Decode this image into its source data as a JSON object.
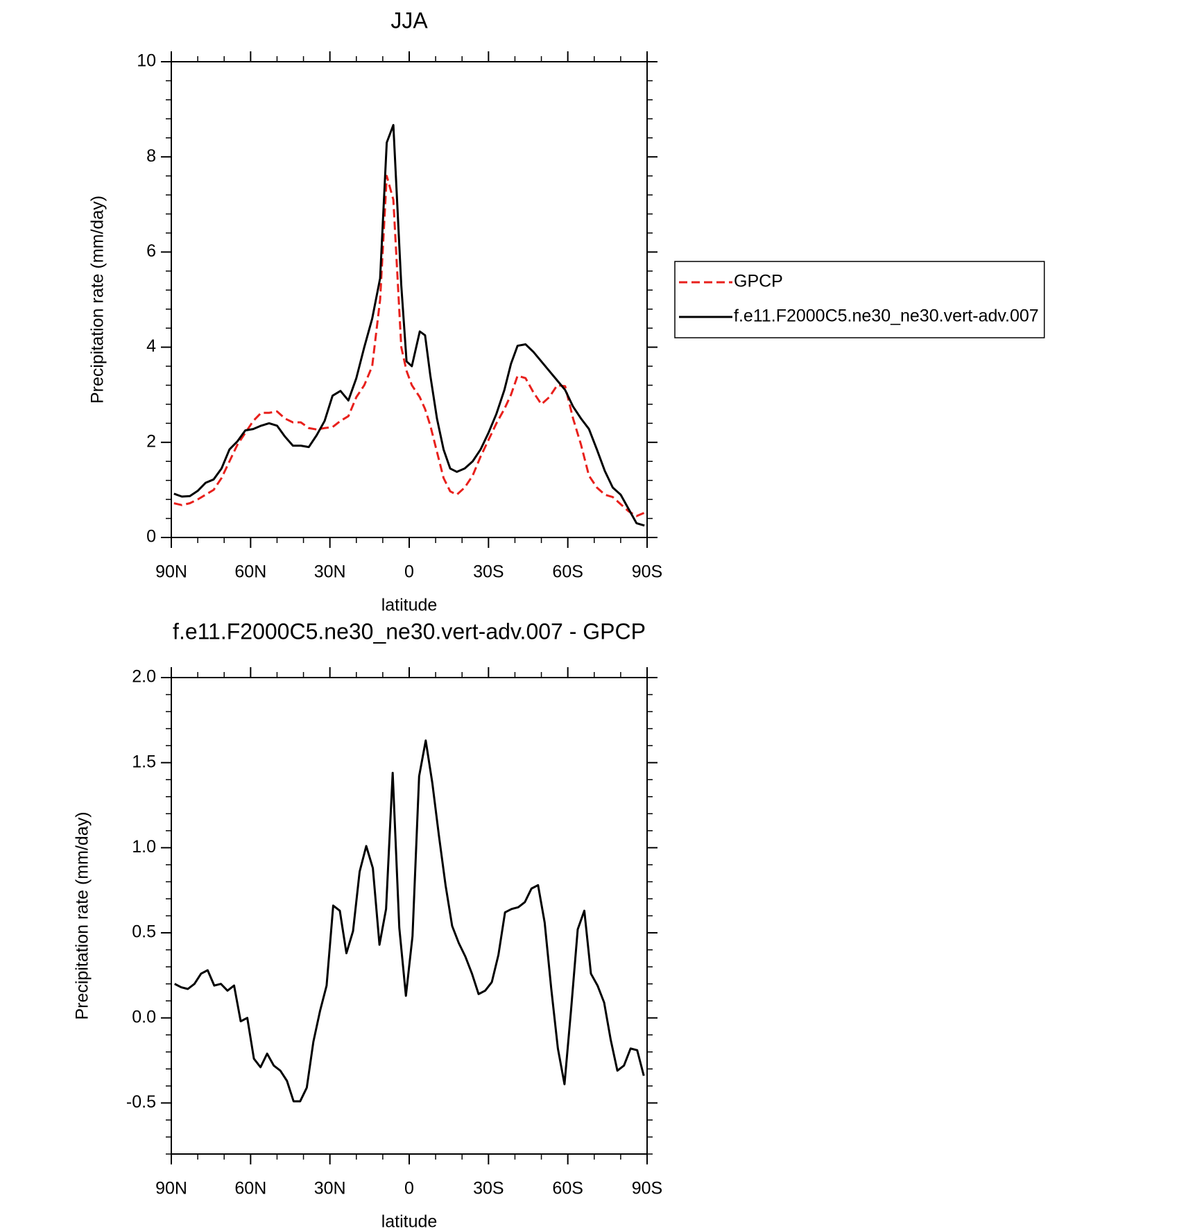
{
  "chart_data": [
    {
      "type": "line",
      "title": "JJA",
      "xlabel": "latitude",
      "ylabel": "Precipitation rate (mm/day)",
      "x": [
        89,
        86,
        83,
        80,
        77,
        74,
        71,
        68,
        65,
        62,
        59,
        56,
        53,
        50,
        47,
        44,
        41,
        38,
        35,
        32,
        29,
        26,
        23,
        20,
        17,
        14,
        11,
        8.5,
        6,
        3,
        1,
        -1,
        -4,
        -6,
        -8,
        -10.5,
        -13,
        -15.5,
        -18,
        -21,
        -24,
        -27,
        -30,
        -33,
        -36,
        -38.5,
        -41,
        -44,
        -47,
        -50,
        -53,
        -56,
        -59,
        -62,
        -65,
        -68,
        -71,
        -74,
        -77,
        -80,
        -83,
        -86,
        -89
      ],
      "xlim": [
        90,
        -90
      ],
      "xticks": [
        {
          "value": 90,
          "label": "90N"
        },
        {
          "value": 60,
          "label": "60N"
        },
        {
          "value": 30,
          "label": "30N"
        },
        0,
        {
          "value": -30,
          "label": "30S"
        },
        {
          "value": -60,
          "label": "60S"
        },
        {
          "value": -90,
          "label": "90S"
        }
      ],
      "ylim": [
        0,
        10
      ],
      "yticks": [
        0,
        2,
        4,
        6,
        8,
        10
      ],
      "legend": "right",
      "series": [
        {
          "name": "GPCP",
          "color": "#e8201c",
          "line_style": "dashed",
          "values": [
            0.72,
            0.68,
            0.72,
            0.8,
            0.9,
            1.0,
            1.25,
            1.6,
            1.95,
            2.2,
            2.45,
            2.62,
            2.62,
            2.65,
            2.5,
            2.42,
            2.42,
            2.3,
            2.27,
            2.3,
            2.32,
            2.45,
            2.55,
            2.95,
            3.2,
            3.6,
            5.0,
            7.6,
            7.1,
            4.0,
            3.5,
            3.2,
            2.95,
            2.7,
            2.35,
            1.8,
            1.25,
            0.97,
            0.9,
            1.05,
            1.3,
            1.7,
            2.05,
            2.4,
            2.7,
            3.0,
            3.4,
            3.35,
            3.05,
            2.8,
            2.95,
            3.2,
            3.18,
            2.5,
            1.95,
            1.3,
            1.05,
            0.9,
            0.85,
            0.7,
            0.55,
            0.45,
            0.52
          ]
        },
        {
          "name": "f.e11.F2000C5.ne30_ne30.vert-adv.007",
          "color": "#000000",
          "line_style": "solid",
          "values": [
            0.92,
            0.86,
            0.87,
            0.98,
            1.15,
            1.22,
            1.45,
            1.85,
            2.02,
            2.25,
            2.28,
            2.35,
            2.4,
            2.35,
            2.12,
            1.93,
            1.93,
            1.9,
            2.15,
            2.45,
            2.98,
            3.08,
            2.88,
            3.35,
            4.0,
            4.6,
            5.45,
            8.3,
            8.67,
            5.3,
            3.7,
            3.6,
            4.33,
            4.25,
            3.4,
            2.5,
            1.85,
            1.45,
            1.38,
            1.45,
            1.6,
            1.85,
            2.2,
            2.6,
            3.1,
            3.65,
            4.03,
            4.06,
            3.9,
            3.7,
            3.5,
            3.3,
            3.1,
            2.75,
            2.5,
            2.28,
            1.85,
            1.4,
            1.05,
            0.9,
            0.6,
            0.3,
            0.25
          ]
        }
      ]
    },
    {
      "type": "line",
      "title": "f.e11.F2000C5.ne30_ne30.vert-adv.007 - GPCP",
      "xlabel": "latitude",
      "ylabel": "Precipitation rate (mm/day)",
      "x": [
        88.75,
        86.25,
        83.75,
        81.25,
        78.75,
        76.25,
        73.75,
        71.25,
        68.75,
        66.25,
        63.75,
        61.25,
        58.75,
        56.25,
        53.75,
        51.25,
        48.75,
        46.25,
        43.75,
        41.25,
        38.75,
        36.25,
        33.75,
        31.25,
        28.75,
        26.25,
        23.75,
        21.25,
        18.75,
        16.25,
        13.75,
        11.25,
        8.75,
        6.25,
        3.75,
        1.25,
        -1.25,
        -3.75,
        -6.25,
        -8.75,
        -11.25,
        -13.75,
        -16.25,
        -18.75,
        -21.25,
        -23.75,
        -26.25,
        -28.75,
        -31.25,
        -33.75,
        -36.25,
        -38.75,
        -41.25,
        -43.75,
        -46.25,
        -48.75,
        -51.25,
        -53.75,
        -56.25,
        -58.75,
        -61.25,
        -63.75,
        -66.25,
        -68.75,
        -71.25,
        -73.75,
        -76.25,
        -78.75,
        -81.25,
        -83.75,
        -86.25,
        -88.75
      ],
      "xlim": [
        90,
        -90
      ],
      "xticks": [
        {
          "value": 90,
          "label": "90N"
        },
        {
          "value": 60,
          "label": "60N"
        },
        {
          "value": 30,
          "label": "30N"
        },
        0,
        {
          "value": -30,
          "label": "30S"
        },
        {
          "value": -60,
          "label": "60S"
        },
        {
          "value": -90,
          "label": "90S"
        }
      ],
      "ylim": [
        -0.8,
        2.0
      ],
      "yticks": [
        -0.5,
        {
          "value": 0,
          "label": "0.0"
        },
        0.5,
        {
          "value": 1,
          "label": "1.0"
        },
        1.5,
        {
          "value": 2,
          "label": "2.0"
        }
      ],
      "series": [
        {
          "color": "#000000",
          "line_style": "solid",
          "values": [
            0.2,
            0.18,
            0.17,
            0.2,
            0.26,
            0.28,
            0.19,
            0.2,
            0.16,
            0.19,
            -0.02,
            0,
            -0.24,
            -0.29,
            -0.21,
            -0.28,
            -0.31,
            -0.37,
            -0.49,
            -0.49,
            -0.41,
            -0.14,
            0.04,
            0.19,
            0.66,
            0.63,
            0.38,
            0.51,
            0.86,
            1.01,
            0.88,
            0.43,
            0.64,
            1.44,
            0.53,
            0.13,
            0.48,
            1.42,
            1.63,
            1.38,
            1.07,
            0.78,
            0.54,
            0.44,
            0.36,
            0.26,
            0.14,
            0.16,
            0.21,
            0.37,
            0.62,
            0.64,
            0.65,
            0.68,
            0.76,
            0.78,
            0.56,
            0.17,
            -0.18,
            -0.39,
            0.05,
            0.52,
            0.63,
            0.26,
            0.19,
            0.09,
            -0.13,
            -0.31,
            -0.28,
            -0.18,
            -0.19,
            -0.34
          ]
        }
      ]
    }
  ]
}
